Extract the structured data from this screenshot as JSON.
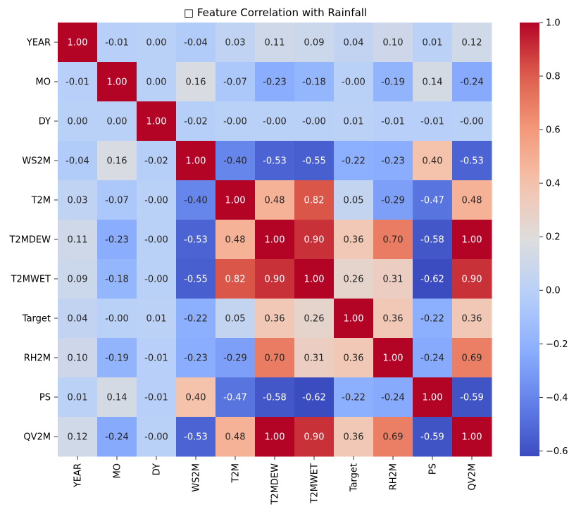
{
  "chart_data": {
    "type": "heatmap",
    "title": "□ Feature Correlation with Rainfall",
    "rows": [
      "YEAR",
      "MO",
      "DY",
      "WS2M",
      "T2M",
      "T2MDEW",
      "T2MWET",
      "Target",
      "RH2M",
      "PS",
      "QV2M"
    ],
    "columns": [
      "YEAR",
      "MO",
      "DY",
      "WS2M",
      "T2M",
      "T2MDEW",
      "T2MWET",
      "Target",
      "RH2M",
      "PS",
      "QV2M"
    ],
    "values": [
      [
        1.0,
        -0.01,
        0.0,
        -0.04,
        0.03,
        0.11,
        0.09,
        0.04,
        0.1,
        0.01,
        0.12
      ],
      [
        -0.01,
        1.0,
        0.0,
        0.16,
        -0.07,
        -0.23,
        -0.18,
        -0.0,
        -0.19,
        0.14,
        -0.24
      ],
      [
        0.0,
        0.0,
        1.0,
        -0.02,
        -0.0,
        -0.0,
        -0.0,
        0.01,
        -0.01,
        -0.01,
        -0.0
      ],
      [
        -0.04,
        0.16,
        -0.02,
        1.0,
        -0.4,
        -0.53,
        -0.55,
        -0.22,
        -0.23,
        0.4,
        -0.53
      ],
      [
        0.03,
        -0.07,
        -0.0,
        -0.4,
        1.0,
        0.48,
        0.82,
        0.05,
        -0.29,
        -0.47,
        0.48
      ],
      [
        0.11,
        -0.23,
        -0.0,
        -0.53,
        0.48,
        1.0,
        0.9,
        0.36,
        0.7,
        -0.58,
        1.0
      ],
      [
        0.09,
        -0.18,
        -0.0,
        -0.55,
        0.82,
        0.9,
        1.0,
        0.26,
        0.31,
        -0.62,
        0.9
      ],
      [
        0.04,
        -0.0,
        0.01,
        -0.22,
        0.05,
        0.36,
        0.26,
        1.0,
        0.36,
        -0.22,
        0.36
      ],
      [
        0.1,
        -0.19,
        -0.01,
        -0.23,
        -0.29,
        0.7,
        0.31,
        0.36,
        1.0,
        -0.24,
        0.69
      ],
      [
        0.01,
        0.14,
        -0.01,
        0.4,
        -0.47,
        -0.58,
        -0.62,
        -0.22,
        -0.24,
        1.0,
        -0.59
      ],
      [
        0.12,
        -0.24,
        -0.0,
        -0.53,
        0.48,
        1.0,
        0.9,
        0.36,
        0.69,
        -0.59,
        1.0
      ]
    ],
    "value_format": "2 decimals",
    "colormap": "coolwarm",
    "vmin": -0.62,
    "vmax": 1.0,
    "colorbar_ticks": [
      -0.6,
      -0.4,
      -0.2,
      0.0,
      0.2,
      0.4,
      0.6,
      0.8,
      1.0
    ],
    "colorbar_tick_labels": [
      "−0.6",
      "−0.4",
      "−0.2",
      "0.0",
      "0.2",
      "0.4",
      "0.6",
      "0.8",
      "1.0"
    ],
    "xlabel": "",
    "ylabel": "",
    "grid": false,
    "legend": "colorbar-right"
  }
}
